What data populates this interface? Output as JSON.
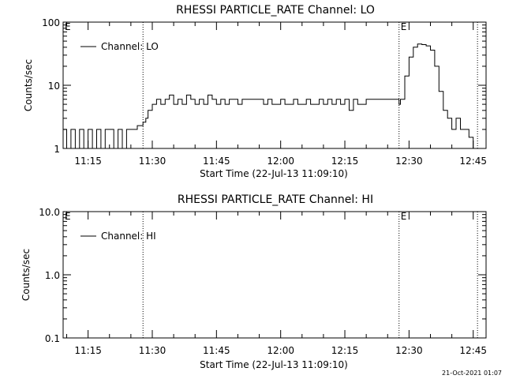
{
  "chart_data": [
    {
      "type": "line",
      "title": "RHESSI PARTICLE_RATE Channel: LO",
      "xlabel": "Start Time (22-Jul-13 11:09:10)",
      "ylabel": "Counts/sec",
      "yscale": "log",
      "xlim": [
        "11:09:10",
        "12:48:00"
      ],
      "ylim": [
        1,
        100
      ],
      "x_ticks": [
        "11:15",
        "11:30",
        "11:45",
        "12:00",
        "12:15",
        "12:30",
        "12:45"
      ],
      "y_ticks": [
        "1",
        "10",
        "100"
      ],
      "legend": "top-left",
      "grid": false,
      "vlines": [
        {
          "x": "11:09:10",
          "label": "E"
        },
        {
          "x": "11:27:50",
          "label": ""
        },
        {
          "x": "12:27:40",
          "label": "E"
        },
        {
          "x": "12:46:00",
          "label": ""
        }
      ],
      "series": [
        {
          "name": "Channel: LO",
          "x": [
            "11:09:10",
            "11:10:00",
            "11:11:00",
            "11:12:00",
            "11:13:00",
            "11:14:00",
            "11:15:00",
            "11:16:00",
            "11:17:00",
            "11:18:00",
            "11:19:00",
            "11:20:00",
            "11:21:00",
            "11:22:00",
            "11:23:00",
            "11:24:00",
            "11:25:00",
            "11:25:30",
            "11:26:00",
            "11:26:30",
            "11:27:50",
            "11:28:30",
            "11:29:00",
            "11:30:00",
            "11:31:00",
            "11:32:00",
            "11:33:00",
            "11:34:00",
            "11:35:00",
            "11:36:00",
            "11:37:00",
            "11:38:00",
            "11:39:00",
            "11:40:00",
            "11:41:00",
            "11:42:00",
            "11:43:00",
            "11:44:00",
            "11:45:00",
            "11:46:00",
            "11:47:00",
            "11:48:00",
            "11:49:00",
            "11:50:00",
            "11:51:00",
            "11:52:00",
            "11:53:00",
            "11:54:00",
            "11:55:00",
            "11:56:00",
            "11:57:00",
            "11:58:00",
            "11:59:00",
            "12:00:00",
            "12:01:00",
            "12:02:00",
            "12:03:00",
            "12:04:00",
            "12:05:00",
            "12:06:00",
            "12:07:00",
            "12:08:00",
            "12:09:00",
            "12:10:00",
            "12:11:00",
            "12:12:00",
            "12:13:00",
            "12:14:00",
            "12:15:00",
            "12:16:00",
            "12:17:00",
            "12:18:00",
            "12:19:00",
            "12:20:00",
            "12:21:00",
            "12:22:00",
            "12:23:00",
            "12:24:00",
            "12:25:00",
            "12:26:00",
            "12:27:00",
            "12:27:40",
            "12:28:00",
            "12:29:00",
            "12:30:00",
            "12:31:00",
            "12:32:00",
            "12:33:00",
            "12:34:00",
            "12:35:00",
            "12:36:00",
            "12:37:00",
            "12:38:00",
            "12:39:00",
            "12:40:00",
            "12:41:00",
            "12:42:00",
            "12:43:00",
            "12:44:00",
            "12:45:00"
          ],
          "y": [
            2,
            1,
            2,
            1,
            2,
            1,
            2,
            1,
            2,
            1,
            2,
            2,
            1,
            2,
            1,
            2,
            2,
            2,
            2,
            2.3,
            2.6,
            3,
            4,
            5,
            6,
            5,
            6,
            7,
            5,
            6,
            5,
            7,
            6,
            5,
            6,
            5,
            7,
            6,
            5,
            6,
            5,
            6,
            6,
            5,
            6,
            6,
            6,
            6,
            6,
            5,
            6,
            5,
            5,
            6,
            5,
            5,
            6,
            5,
            5,
            6,
            5,
            5,
            6,
            5,
            6,
            5,
            6,
            5,
            6,
            4,
            6,
            5,
            5,
            6,
            6,
            6,
            6,
            6,
            6,
            6,
            6,
            5,
            6,
            14,
            28,
            40,
            45,
            44,
            42,
            36,
            20,
            8,
            4,
            3,
            2,
            3,
            2,
            2,
            1.5,
            1
          ]
        }
      ]
    },
    {
      "type": "line",
      "title": "RHESSI PARTICLE_RATE Channel: HI",
      "xlabel": "Start Time (22-Jul-13 11:09:10)",
      "ylabel": "Counts/sec",
      "yscale": "log",
      "xlim": [
        "11:09:10",
        "12:48:00"
      ],
      "ylim": [
        0.1,
        10
      ],
      "x_ticks": [
        "11:15",
        "11:30",
        "11:45",
        "12:00",
        "12:15",
        "12:30",
        "12:45"
      ],
      "y_ticks": [
        "0.1",
        "1.0",
        "10.0"
      ],
      "legend": "top-left",
      "grid": false,
      "vlines": [
        {
          "x": "11:09:10",
          "label": "E"
        },
        {
          "x": "11:27:50",
          "label": ""
        },
        {
          "x": "12:27:40",
          "label": "E"
        },
        {
          "x": "12:46:00",
          "label": ""
        }
      ],
      "series": [
        {
          "name": "Channel: HI",
          "x": [],
          "y": []
        }
      ]
    }
  ],
  "footer": {
    "timestamp": "21-Oct-2021 01:07"
  }
}
